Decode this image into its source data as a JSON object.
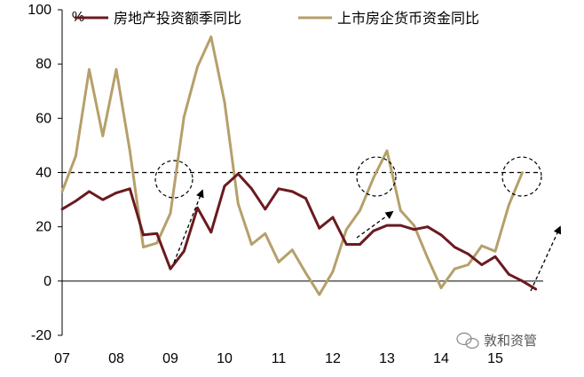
{
  "chart_data": {
    "type": "line",
    "y_unit": "%",
    "ylim": [
      -20,
      100
    ],
    "y_ticks": [
      -20,
      0,
      20,
      40,
      60,
      80,
      100
    ],
    "x_labels": [
      "07",
      "08",
      "09",
      "10",
      "11",
      "12",
      "13",
      "14",
      "15"
    ],
    "reference_line": 40,
    "colors": {
      "investment": "#6b1a1f",
      "funds": "#b5a06a",
      "reference": "#000000"
    },
    "series": [
      {
        "name": "房地产投资额季同比",
        "values": [
          26.5,
          29.5,
          33,
          30,
          32.5,
          34,
          17,
          17.5,
          4.5,
          11,
          27,
          18,
          35,
          39.5,
          34,
          26.5,
          34,
          33,
          30.5,
          19.5,
          23.5,
          13.5,
          13.5,
          18.5,
          20.5,
          20.5,
          19,
          20,
          17,
          12.5,
          10,
          6,
          9,
          2.5,
          0,
          -3
        ]
      },
      {
        "name": "上市房企货币资金同比",
        "values": [
          33,
          46,
          78,
          53.5,
          78,
          48,
          12.5,
          14,
          25,
          60.5,
          79,
          90,
          66,
          28.5,
          13.5,
          17.5,
          7,
          11.5,
          3,
          -5,
          3.5,
          19,
          26,
          38,
          48,
          26,
          20.5,
          8.5,
          -2.5,
          4.5,
          6,
          13,
          11,
          28,
          40
        ]
      }
    ]
  },
  "watermark": "敦和资管"
}
